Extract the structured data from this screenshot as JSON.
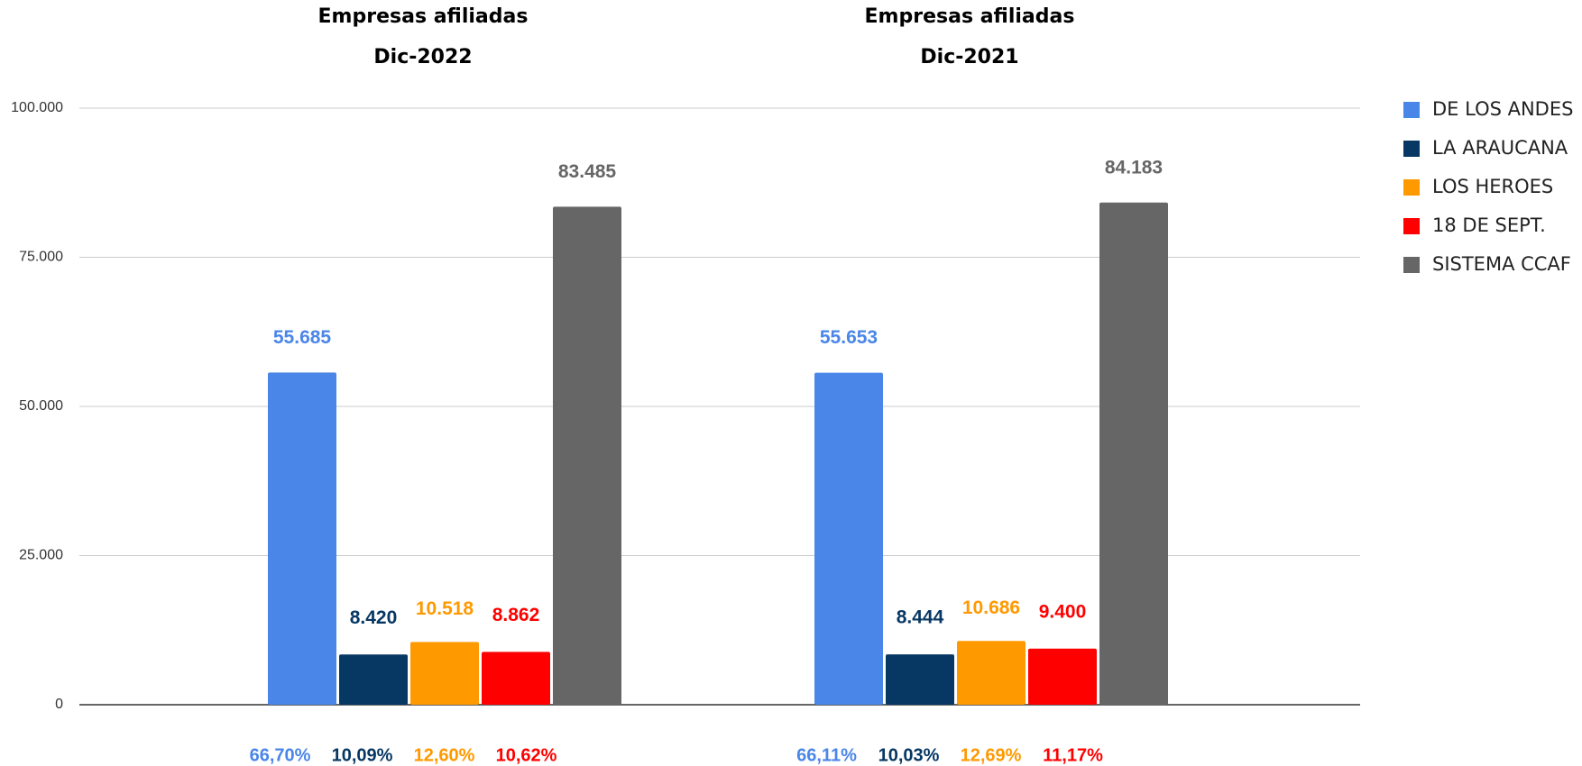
{
  "chart_data": {
    "type": "bar",
    "category_heading": "Empresas afiliadas",
    "categories": [
      "Dic-2022",
      "Dic-2021"
    ],
    "series": [
      {
        "name": "DE LOS ANDES",
        "color": "#4a86e8",
        "values": [
          55685,
          55653
        ],
        "value_labels": [
          "55.685",
          "55.653"
        ],
        "shares": [
          66.7,
          66.11
        ],
        "share_labels": [
          "66,70%",
          "66,11%"
        ]
      },
      {
        "name": "LA ARAUCANA",
        "color": "#073763",
        "values": [
          8420,
          8444
        ],
        "value_labels": [
          "8.420",
          "8.444"
        ],
        "shares": [
          10.09,
          10.03
        ],
        "share_labels": [
          "10,09%",
          "10,03%"
        ]
      },
      {
        "name": "LOS HEROES",
        "color": "#ff9900",
        "values": [
          10518,
          10686
        ],
        "value_labels": [
          "10.518",
          "10.686"
        ],
        "shares": [
          12.6,
          12.69
        ],
        "share_labels": [
          "12,60%",
          "12,69%"
        ]
      },
      {
        "name": "18 DE SEPT.",
        "color": "#ff0000",
        "values": [
          8862,
          9400
        ],
        "value_labels": [
          "8.862",
          "9.400"
        ],
        "shares": [
          10.62,
          11.17
        ],
        "share_labels": [
          "10,62%",
          "11,17%"
        ]
      },
      {
        "name": "SISTEMA CCAF",
        "color": "#666666",
        "values": [
          83485,
          84183
        ],
        "value_labels": [
          "83.485",
          "84.183"
        ]
      }
    ],
    "ylim": [
      0,
      100000
    ],
    "yticks": [
      0,
      {
        "value": 25000,
        "label": "25.000"
      },
      {
        "value": 50000,
        "label": "50.000"
      },
      {
        "value": 75000,
        "label": "75.000"
      },
      {
        "value": 100000,
        "label": "100.000"
      }
    ],
    "grid": true,
    "legend": "right"
  }
}
